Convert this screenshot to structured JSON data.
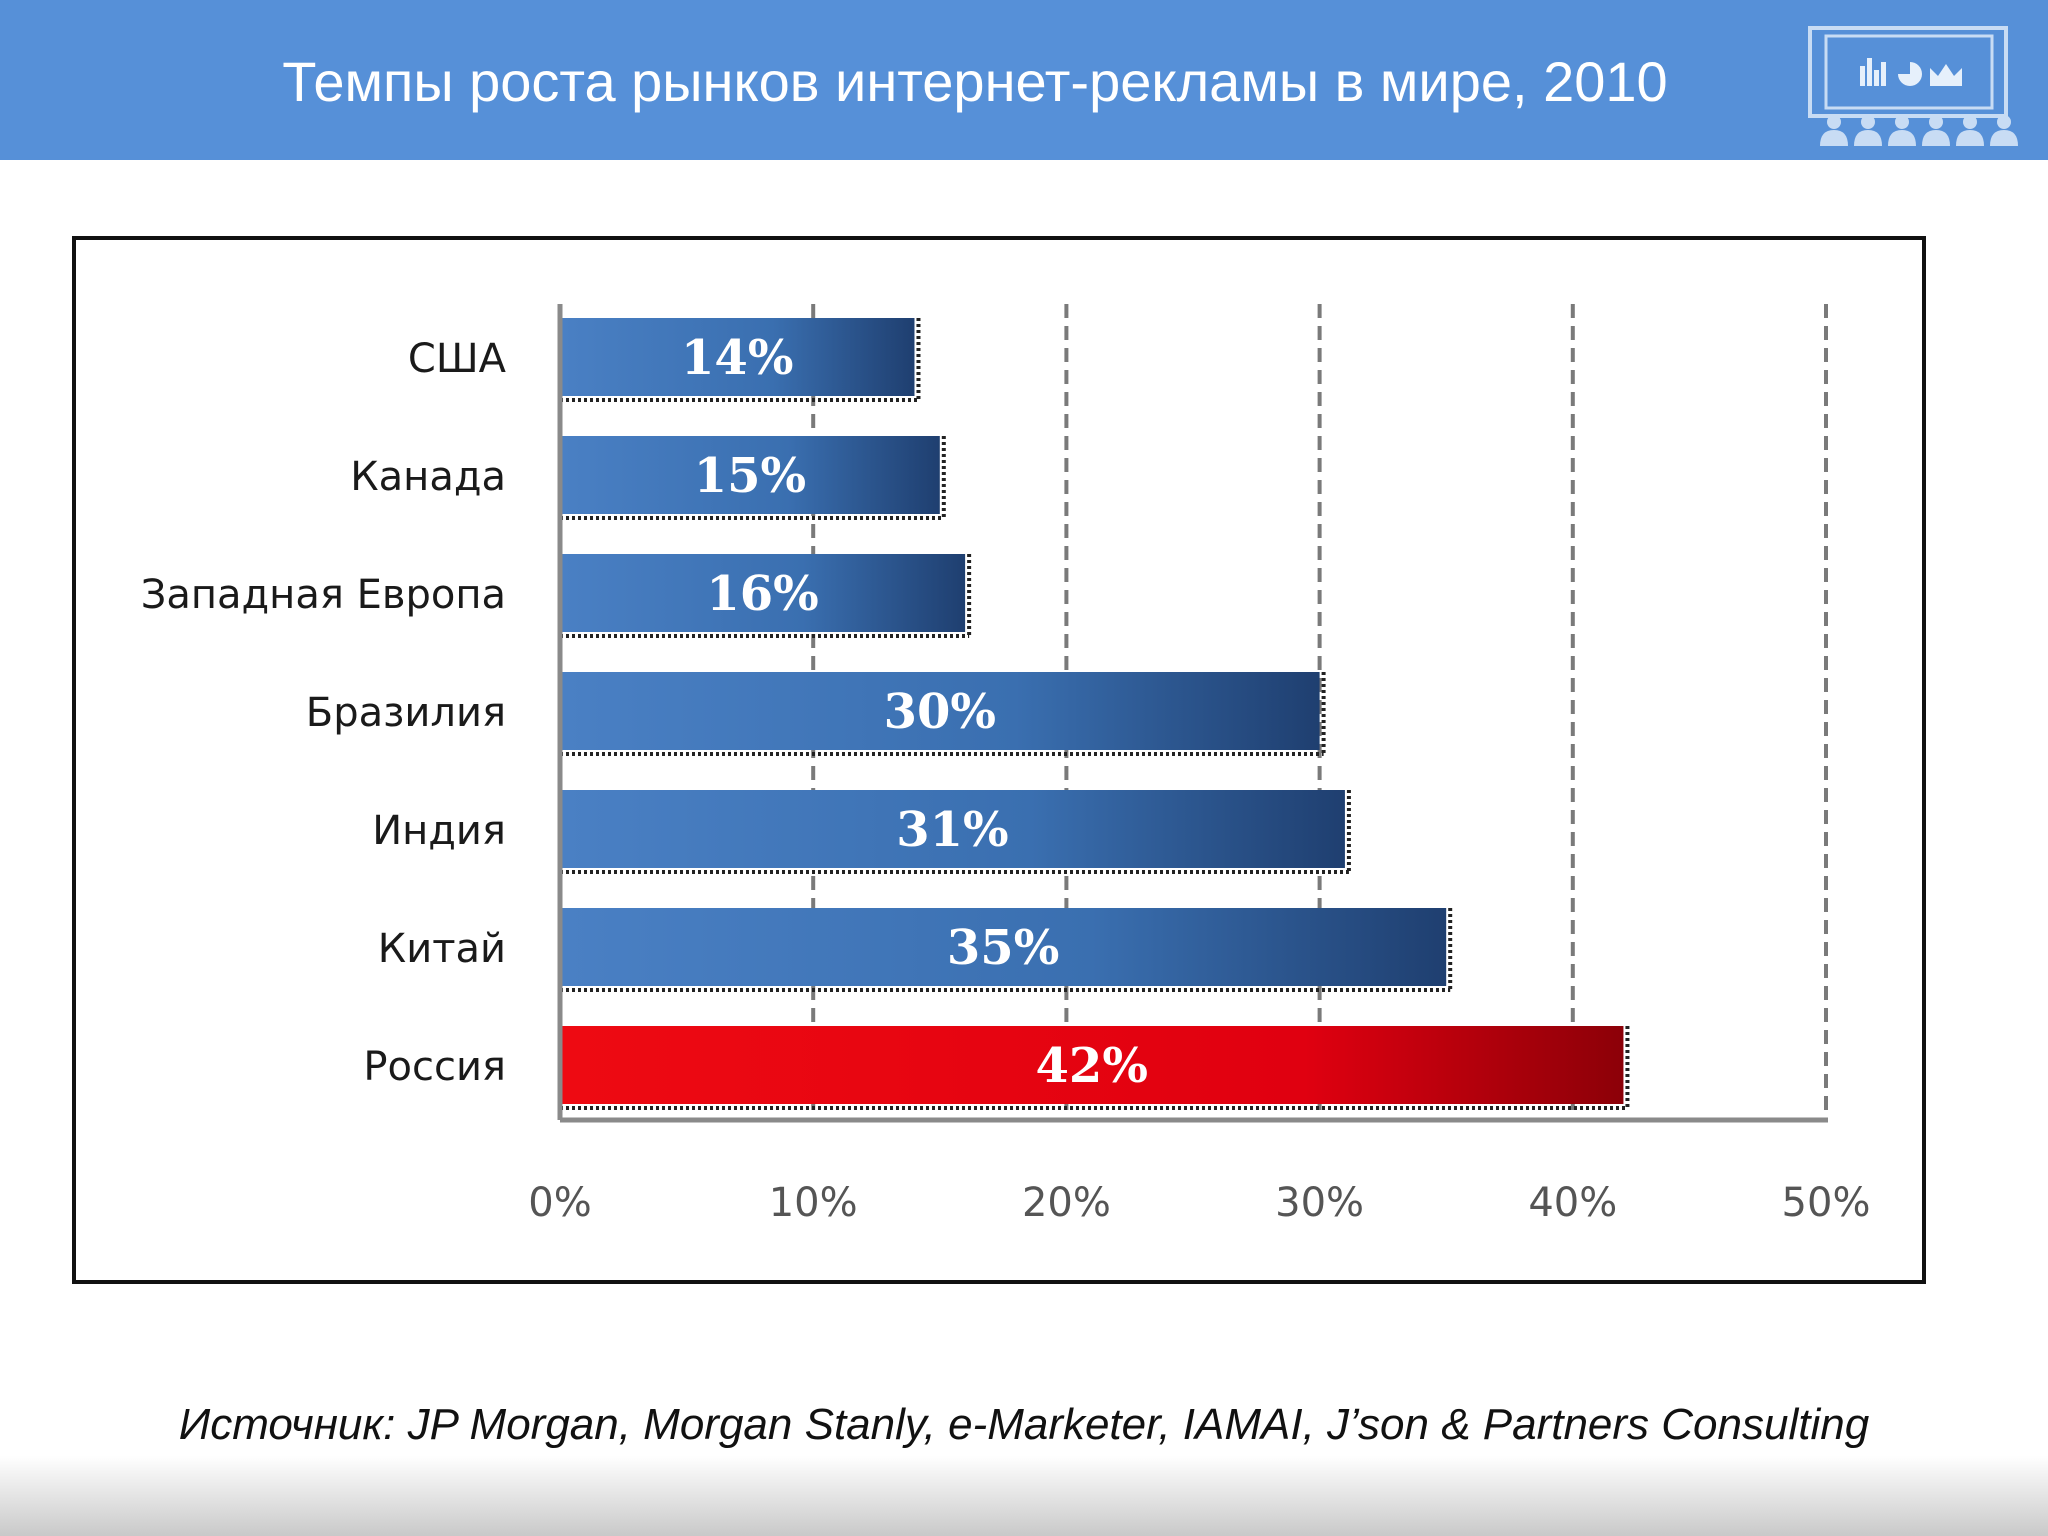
{
  "slide": {
    "title": "Темпы роста рынков интернет-рекламы в мире, 2010",
    "source": "Источник: JP Morgan, Morgan Stanly, e-Marketer, IAMAI, J’son & Partners Consulting",
    "logo_icon": "presentation-audience-icon",
    "header_color": "#5690d8"
  },
  "chart_data": {
    "type": "bar",
    "orientation": "horizontal",
    "categories": [
      "США",
      "Канада",
      "Западная Европа",
      "Бразилия",
      "Индия",
      "Китай",
      "Россия"
    ],
    "values": [
      14,
      15,
      16,
      30,
      31,
      35,
      42
    ],
    "data_labels": [
      "14%",
      "15%",
      "16%",
      "30%",
      "31%",
      "35%",
      "42%"
    ],
    "xlim": [
      0,
      50
    ],
    "x_ticks": [
      0,
      10,
      20,
      30,
      40,
      50
    ],
    "x_tick_labels": [
      "0%",
      "10%",
      "20%",
      "30%",
      "40%",
      "50%"
    ],
    "grid": "vertical-dashed",
    "bar_color": "#3f73b4",
    "highlight_color": "#e8000b",
    "highlight_category": "Россия"
  }
}
